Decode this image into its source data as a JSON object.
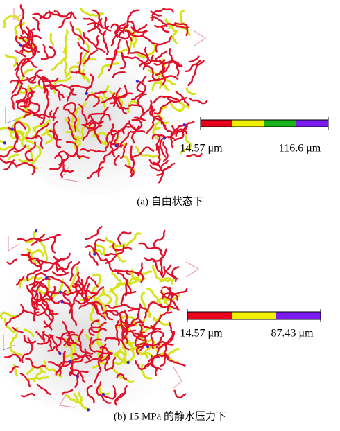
{
  "panels": [
    {
      "caption": "(a)  自由状态下",
      "colorbar": {
        "colors": [
          "#e8001c",
          "#f0f000",
          "#1cb41c",
          "#7a1cf0"
        ],
        "min_label": "14.57 μm",
        "max_label": "116.6 μm"
      }
    },
    {
      "caption": "(b)  15 MPa 的静水压力下",
      "colorbar": {
        "colors": [
          "#e8001c",
          "#f0f000",
          "#7a1cf0"
        ],
        "min_label": "14.57 μm",
        "max_label": "87.43 μm"
      }
    }
  ]
}
